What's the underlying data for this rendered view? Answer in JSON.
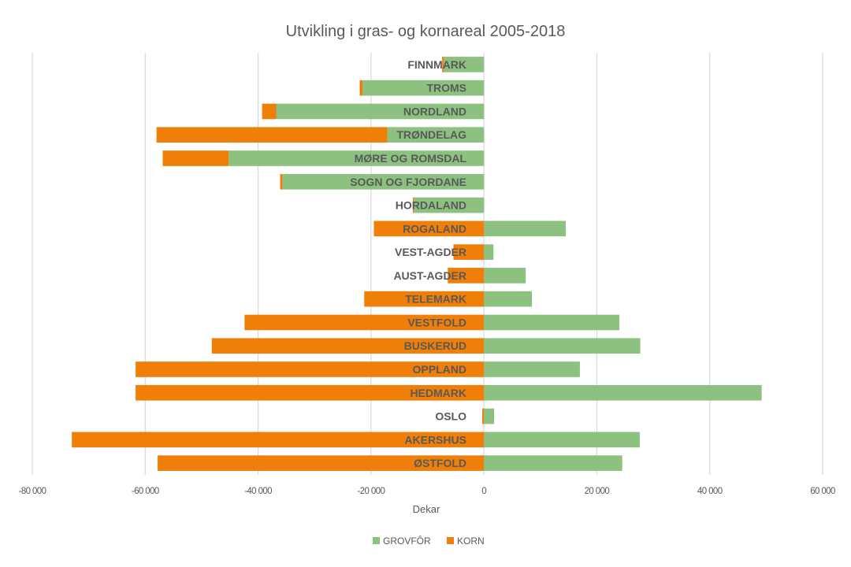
{
  "chart_data": {
    "type": "bar",
    "orientation": "horizontal",
    "stacked": true,
    "title": "Utvikling i gras- og kornareal 2005-2018",
    "xlabel": "Dekar",
    "ylabel": "",
    "xlim": [
      -80000,
      60000
    ],
    "xticks": [
      -80000,
      -60000,
      -40000,
      -20000,
      0,
      20000,
      40000,
      60000
    ],
    "xtick_labels": [
      "-80 000",
      "-60 000",
      "-40 000",
      "-20 000",
      "0",
      "20 000",
      "40 000",
      "60 000"
    ],
    "grid": true,
    "legend_position": "bottom",
    "categories": [
      "FINNMARK",
      "TROMS",
      "NORDLAND",
      "TRØNDELAG",
      "MØRE OG ROMSDAL",
      "SOGN OG FJORDANE",
      "HORDALAND",
      "ROGALAND",
      "VEST-AGDER",
      "AUST-AGDER",
      "TELEMARK",
      "VESTFOLD",
      "BUSKERUD",
      "OPPLAND",
      "HEDMARK",
      "OSLO",
      "AKERSHUS",
      "ØSTFOLD"
    ],
    "series": [
      {
        "name": "GROVFÔR",
        "color": "#8cc180",
        "values": [
          -7100,
          -21500,
          -36800,
          -17100,
          -45200,
          -35700,
          -12400,
          14500,
          1700,
          7400,
          8500,
          24000,
          27700,
          17000,
          49200,
          1800,
          27600,
          24500
        ]
      },
      {
        "name": "KORN",
        "color": "#f07f09",
        "values": [
          -300,
          -500,
          -2500,
          -40900,
          -11700,
          -400,
          -200,
          -19500,
          -5400,
          -6400,
          -21200,
          -42400,
          -48200,
          -61700,
          -61700,
          -300,
          -73000,
          -57800
        ]
      }
    ]
  }
}
